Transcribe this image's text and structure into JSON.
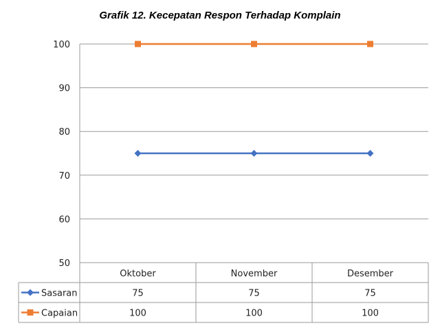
{
  "chart_data": {
    "type": "line",
    "title": "Grafik 12. Kecepatan Respon Terhadap Komplain",
    "categories": [
      "Oktober",
      "November",
      "Desember"
    ],
    "series": [
      {
        "name": "Sasaran",
        "values": [
          75,
          75,
          75
        ],
        "labels": [
          "75",
          "75",
          "75"
        ],
        "color": "#4472C4",
        "marker": "diamond"
      },
      {
        "name": "Capaian",
        "values": [
          100,
          100,
          100
        ],
        "labels": [
          "100",
          "100",
          "100"
        ],
        "color": "#ED7D31",
        "marker": "square"
      }
    ],
    "ylim": [
      50,
      100
    ],
    "yticks": [
      50,
      60,
      70,
      80,
      90,
      100
    ],
    "ytick_labels": [
      "50",
      "60",
      "70",
      "80",
      "90",
      "100"
    ],
    "grid": true,
    "legend": "data-table-bottom"
  }
}
